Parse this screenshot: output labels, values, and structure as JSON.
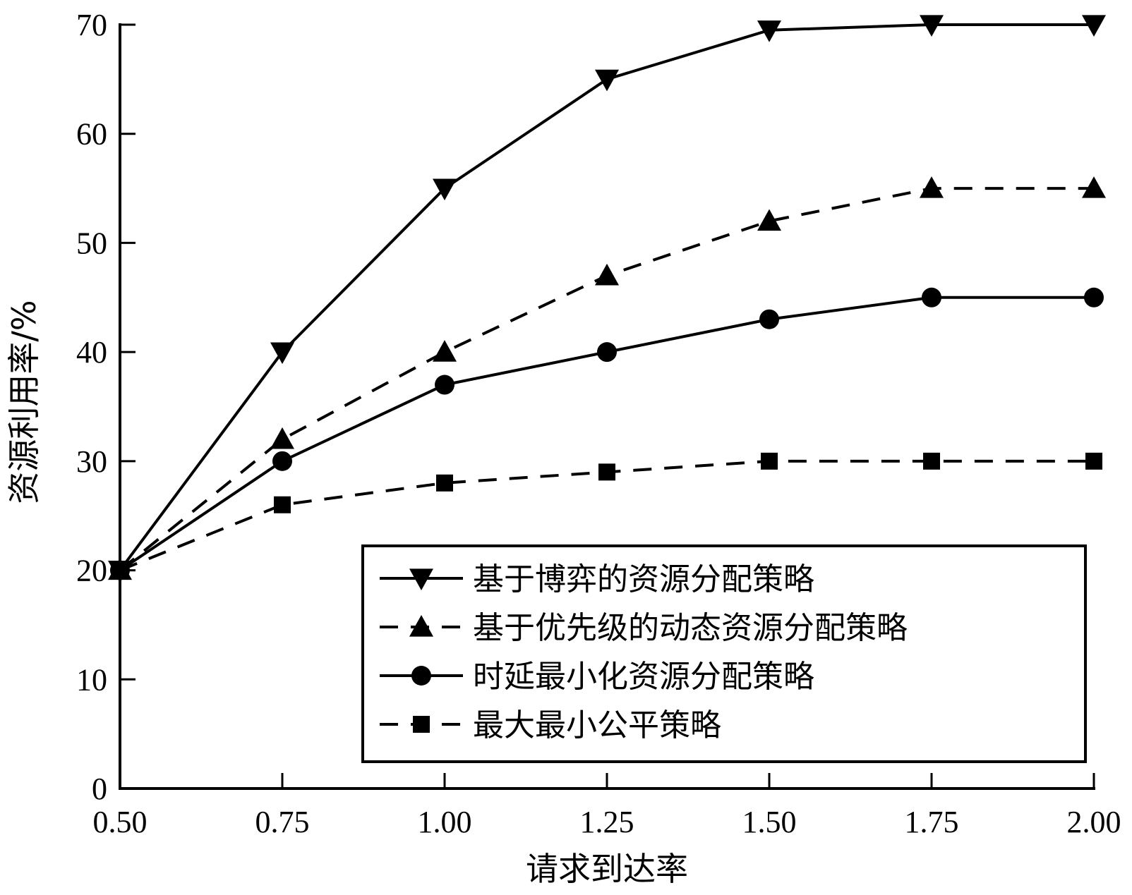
{
  "chart_data": {
    "type": "line",
    "xlabel": "请求到达率",
    "ylabel": "资源利用率/%",
    "xlim": [
      0.5,
      2.0
    ],
    "ylim": [
      0,
      70
    ],
    "x_ticks": [
      "0.50",
      "0.75",
      "1.00",
      "1.25",
      "1.50",
      "1.75",
      "2.00"
    ],
    "y_ticks": [
      "0",
      "10",
      "20",
      "30",
      "40",
      "50",
      "60",
      "70"
    ],
    "x": [
      0.5,
      0.75,
      1.0,
      1.25,
      1.5,
      1.75,
      2.0
    ],
    "grid": false,
    "legend_position": "bottom-right",
    "series": [
      {
        "name": "基于博弈的资源分配策略",
        "values": [
          20,
          40,
          55,
          65,
          69.5,
          70,
          70
        ],
        "marker": "triangle-down",
        "line_style": "solid"
      },
      {
        "name": "基于优先级的动态资源分配策略",
        "values": [
          20,
          32,
          40,
          47,
          52,
          55,
          55
        ],
        "marker": "triangle-up",
        "line_style": "dashed"
      },
      {
        "name": "时延最小化资源分配策略",
        "values": [
          20,
          30,
          37,
          40,
          43,
          45,
          45
        ],
        "marker": "circle",
        "line_style": "solid"
      },
      {
        "name": "最大最小公平策略",
        "values": [
          20,
          26,
          28,
          29,
          30,
          30,
          30
        ],
        "marker": "square",
        "line_style": "dashed"
      }
    ],
    "colors": {
      "line": "#000000",
      "background": "#ffffff"
    }
  }
}
